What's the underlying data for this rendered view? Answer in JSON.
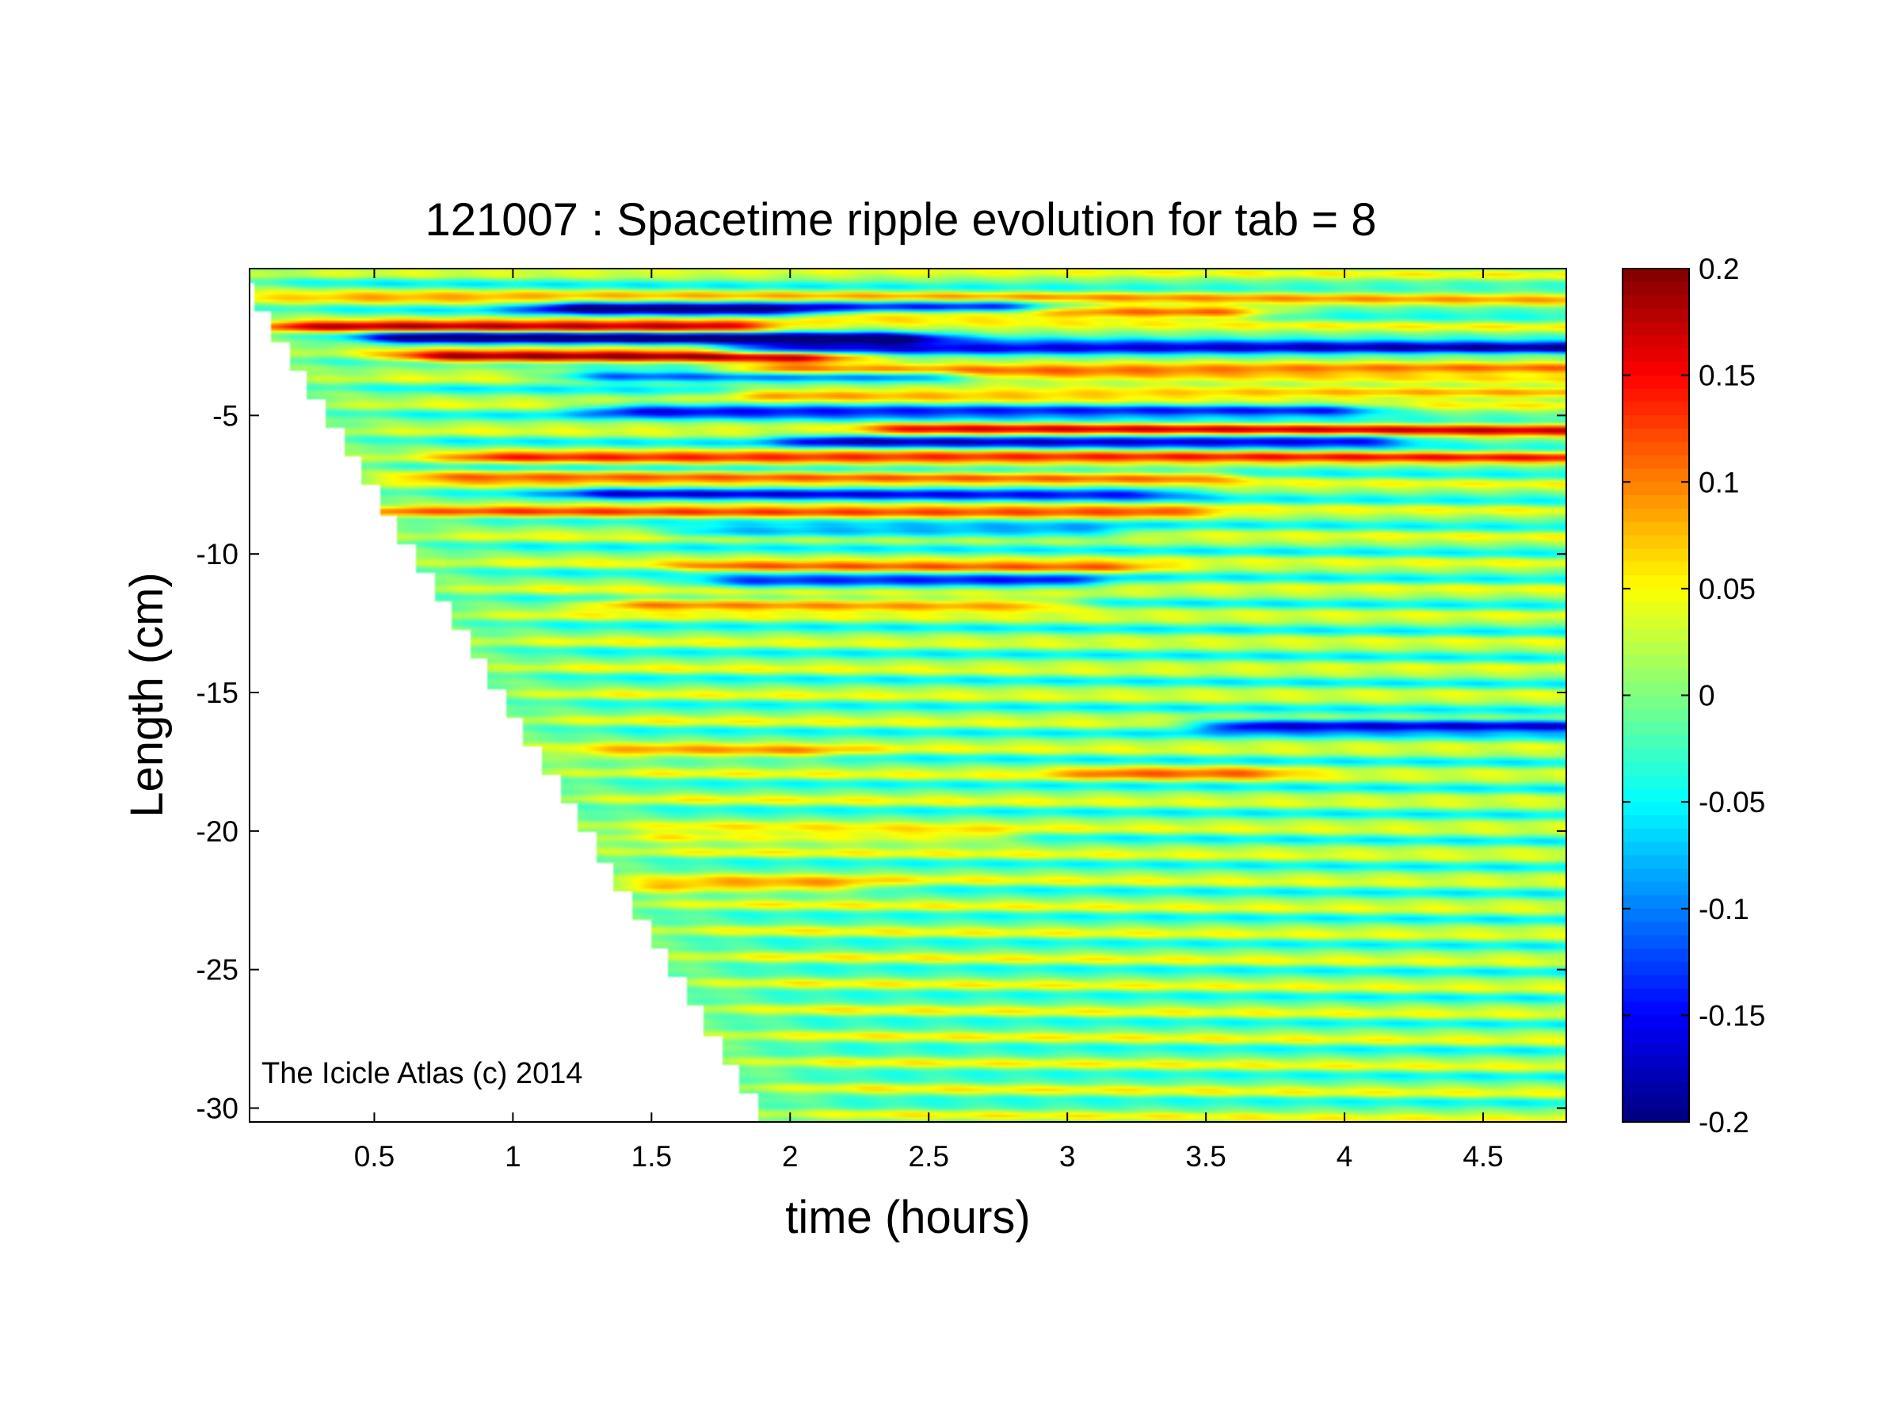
{
  "chart_data": {
    "type": "heatmap",
    "title": "121007 : Spacetime ripple evolution for tab = 8",
    "xlabel": "time (hours)",
    "ylabel": "Length (cm)",
    "xlim": [
      0.05,
      4.8
    ],
    "ylim": [
      -30.5,
      0.3
    ],
    "xticks": [
      0.5,
      1,
      1.5,
      2,
      2.5,
      3,
      3.5,
      4,
      4.5
    ],
    "xtick_labels": [
      "0.5",
      "1",
      "1.5",
      "2",
      "2.5",
      "3",
      "3.5",
      "4",
      "4.5"
    ],
    "yticks": [
      -5,
      -10,
      -15,
      -20,
      -25,
      -30
    ],
    "ytick_labels": [
      "-5",
      "-10",
      "-15",
      "-20",
      "-25",
      "-30"
    ],
    "colorbar": {
      "colormap": "jet",
      "clim": [
        -0.2,
        0.2
      ],
      "ticks": [
        0.2,
        0.15,
        0.1,
        0.05,
        0,
        -0.05,
        -0.1,
        -0.15,
        -0.2
      ],
      "tick_labels": [
        "0.2",
        "0.15",
        "0.1",
        "0.05",
        "0",
        "-0.05",
        "-0.1",
        "-0.15",
        "-0.2"
      ]
    },
    "growth_front": {
      "t": [
        0.05,
        1.95
      ],
      "length": [
        0.0,
        -30.5
      ]
    },
    "ripple_features": [
      {
        "length": -0.7,
        "t_start": 0.1,
        "t_end": 4.8,
        "amp": 0.05
      },
      {
        "length": -1.1,
        "t_start": 1.3,
        "t_end": 2.7,
        "amp": -0.2
      },
      {
        "length": -1.3,
        "t_start": 2.3,
        "t_end": 3.5,
        "amp": 0.15
      },
      {
        "length": -1.8,
        "t_start": 0.3,
        "t_end": 1.7,
        "amp": 0.15
      },
      {
        "length": -2.2,
        "t_start": 0.7,
        "t_end": 2.3,
        "amp": -0.2
      },
      {
        "length": -2.6,
        "t_start": 2.0,
        "t_end": 4.8,
        "amp": -0.2
      },
      {
        "length": -2.9,
        "t_start": 0.8,
        "t_end": 2.0,
        "amp": 0.18
      },
      {
        "length": -3.3,
        "t_start": 2.0,
        "t_end": 4.8,
        "amp": 0.15
      },
      {
        "length": -3.6,
        "t_start": 1.4,
        "t_end": 2.4,
        "amp": -0.15
      },
      {
        "length": -4.2,
        "t_start": 2.0,
        "t_end": 4.8,
        "amp": 0.12
      },
      {
        "length": -4.8,
        "t_start": 1.5,
        "t_end": 3.9,
        "amp": -0.16
      },
      {
        "length": -5.5,
        "t_start": 2.5,
        "t_end": 4.8,
        "amp": 0.13
      },
      {
        "length": -5.9,
        "t_start": 2.2,
        "t_end": 4.0,
        "amp": -0.15
      },
      {
        "length": -6.5,
        "t_start": 1.0,
        "t_end": 4.8,
        "amp": 0.1
      },
      {
        "length": -7.2,
        "t_start": 0.8,
        "t_end": 3.4,
        "amp": 0.1
      },
      {
        "length": -7.8,
        "t_start": 1.4,
        "t_end": 3.2,
        "amp": -0.12
      },
      {
        "length": -8.5,
        "t_start": 0.6,
        "t_end": 3.3,
        "amp": 0.09
      },
      {
        "length": -9.2,
        "t_start": 1.8,
        "t_end": 3.0,
        "amp": -0.1
      },
      {
        "length": -10.5,
        "t_start": 1.8,
        "t_end": 3.1,
        "amp": 0.09
      },
      {
        "length": -11.0,
        "t_start": 1.9,
        "t_end": 2.9,
        "amp": -0.14
      },
      {
        "length": -11.8,
        "t_start": 1.5,
        "t_end": 2.8,
        "amp": 0.12
      },
      {
        "length": -16.2,
        "t_start": 3.7,
        "t_end": 4.8,
        "amp": -0.2
      },
      {
        "length": -17.2,
        "t_start": 1.4,
        "t_end": 2.0,
        "amp": 0.08
      },
      {
        "length": -17.9,
        "t_start": 3.2,
        "t_end": 3.6,
        "amp": 0.08
      },
      {
        "length": -20.2,
        "t_start": 1.6,
        "t_end": 2.6,
        "amp": 0.09
      },
      {
        "length": -22.0,
        "t_start": 1.6,
        "t_end": 2.1,
        "amp": 0.1
      }
    ],
    "annotation": "The Icicle Atlas (c) 2014"
  }
}
